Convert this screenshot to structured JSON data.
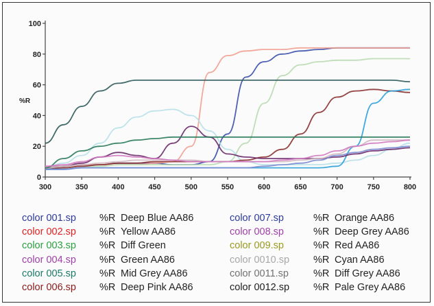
{
  "chart_data": {
    "type": "line",
    "title": "",
    "xlabel": "",
    "ylabel": "%R",
    "xlim": [
      300,
      800
    ],
    "ylim": [
      0,
      100
    ],
    "x_ticks": [
      "300",
      "350",
      "400",
      "450",
      "500",
      "550",
      "600",
      "650",
      "700",
      "750",
      "800"
    ],
    "y_ticks": [
      "0",
      "20",
      "40",
      "60",
      "80",
      "100"
    ],
    "legend_position": "bottom",
    "x": [
      300,
      325,
      350,
      375,
      400,
      425,
      450,
      475,
      500,
      525,
      550,
      575,
      600,
      625,
      650,
      675,
      700,
      725,
      750,
      775,
      800
    ],
    "series": [
      {
        "name": "color 001.sp %R Deep Blue AA86",
        "color": "#3a4fa8",
        "values": [
          6,
          7,
          8,
          8,
          9,
          9,
          9,
          8,
          8,
          10,
          28,
          65,
          75,
          80,
          82,
          83,
          84,
          84,
          84,
          84,
          84
        ]
      },
      {
        "name": "color 002.sp %R Yellow AA86",
        "color": "#f0a090",
        "values": [
          7,
          7,
          8,
          8,
          8,
          8,
          9,
          10,
          20,
          68,
          79,
          82,
          83,
          83,
          84,
          84,
          84,
          84,
          84,
          84,
          84
        ]
      },
      {
        "name": "color 003.sp %R Diff Green",
        "color": "#b8dab0",
        "values": [
          6,
          6,
          7,
          7,
          8,
          8,
          8,
          8,
          8,
          8,
          10,
          22,
          48,
          66,
          73,
          75,
          76,
          76,
          77,
          77,
          77
        ]
      },
      {
        "name": "color 004.sp %R Green AA86",
        "color": "#b8e0e8",
        "values": [
          6,
          9,
          14,
          22,
          32,
          39,
          43,
          44,
          40,
          30,
          18,
          10,
          8,
          8,
          8,
          8,
          9,
          11,
          14,
          18,
          22
        ]
      },
      {
        "name": "color 005.sp %R Mid Grey AA86",
        "color": "#2f5a5a",
        "values": [
          22,
          34,
          46,
          56,
          61,
          63,
          63,
          63,
          63,
          63,
          63,
          63,
          63,
          63,
          63,
          63,
          63,
          63,
          63,
          63,
          62
        ]
      },
      {
        "name": "color 006.sp %R Deep Pink AA86",
        "color": "#8a3030",
        "values": [
          5,
          6,
          7,
          8,
          9,
          9,
          10,
          10,
          10,
          10,
          10,
          11,
          13,
          18,
          28,
          42,
          52,
          56,
          57,
          56,
          55
        ]
      },
      {
        "name": "color 007.sp %R Orange AA86",
        "color": "#2aa0d8",
        "values": [
          5,
          5,
          6,
          6,
          6,
          6,
          6,
          6,
          6,
          6,
          6,
          6,
          6,
          6,
          6,
          6,
          7,
          20,
          48,
          56,
          57
        ]
      },
      {
        "name": "color 008.sp %R Deep Grey AA86",
        "color": "#6a2a6a",
        "values": [
          6,
          7,
          9,
          13,
          16,
          14,
          12,
          22,
          33,
          26,
          15,
          13,
          12,
          12,
          12,
          12,
          13,
          15,
          17,
          18,
          19
        ]
      },
      {
        "name": "color 009.sp %R Red AA86",
        "color": "#d0b8c0",
        "values": [
          6,
          7,
          8,
          9,
          10,
          11,
          11,
          11,
          11,
          10,
          10,
          10,
          10,
          10,
          11,
          12,
          15,
          20,
          24,
          24,
          24
        ]
      },
      {
        "name": "color 0010.sp %R Cyan AA86",
        "color": "#2a7a5a",
        "values": [
          6,
          12,
          17,
          20,
          22,
          24,
          25,
          26,
          26,
          26,
          26,
          26,
          26,
          26,
          26,
          26,
          26,
          26,
          26,
          26,
          26
        ]
      },
      {
        "name": "color 0011.sp %R Diff Grey AA86",
        "color": "#d078c0",
        "values": [
          7,
          8,
          10,
          13,
          14,
          13,
          12,
          11,
          10,
          10,
          10,
          10,
          10,
          11,
          12,
          14,
          17,
          20,
          22,
          23,
          24
        ]
      },
      {
        "name": "color 0012.sp %R Pale Grey AA86",
        "color": "#7a8ad0",
        "values": [
          5,
          5,
          6,
          6,
          6,
          6,
          6,
          6,
          6,
          6,
          6,
          6,
          7,
          8,
          9,
          11,
          14,
          16,
          18,
          19,
          20
        ]
      }
    ]
  },
  "legend": {
    "left": [
      {
        "file": "color 001.sp",
        "unit": "%R",
        "name": "Deep Blue AA86",
        "color": "#2b3a9c"
      },
      {
        "file": "color 002.sp",
        "unit": "%R",
        "name": "Yellow AA86",
        "color": "#e02020"
      },
      {
        "file": "color 003.sp",
        "unit": "%R",
        "name": "Diff Green",
        "color": "#2aa040"
      },
      {
        "file": "color 004.sp",
        "unit": "%R",
        "name": "Green AA86",
        "color": "#a040a8"
      },
      {
        "file": "color 005.sp",
        "unit": "%R",
        "name": "Mid Grey AA86",
        "color": "#1a7a6a"
      },
      {
        "file": "color 006.sp",
        "unit": "%R",
        "name": "Deep Pink AA86",
        "color": "#8a1a1a"
      }
    ],
    "right": [
      {
        "file": "color 007.sp",
        "unit": "%R",
        "name": "Orange AA86",
        "color": "#2b3a9c"
      },
      {
        "file": "color 008.sp",
        "unit": "%R",
        "name": "Deep Grey AA86",
        "color": "#a040a8"
      },
      {
        "file": "color 009.sp",
        "unit": "%R",
        "name": "Red AA86",
        "color": "#9a9a20"
      },
      {
        "file": "color 0010.sp",
        "unit": "%R",
        "name": "Cyan AA86",
        "color": "#a8a8a8"
      },
      {
        "file": "color 0011.sp",
        "unit": "%R",
        "name": "Diff Grey AA86",
        "color": "#707070"
      },
      {
        "file": "color 0012.sp",
        "unit": "%R",
        "name": "Pale Grey AA86",
        "color": "#202020"
      }
    ]
  }
}
